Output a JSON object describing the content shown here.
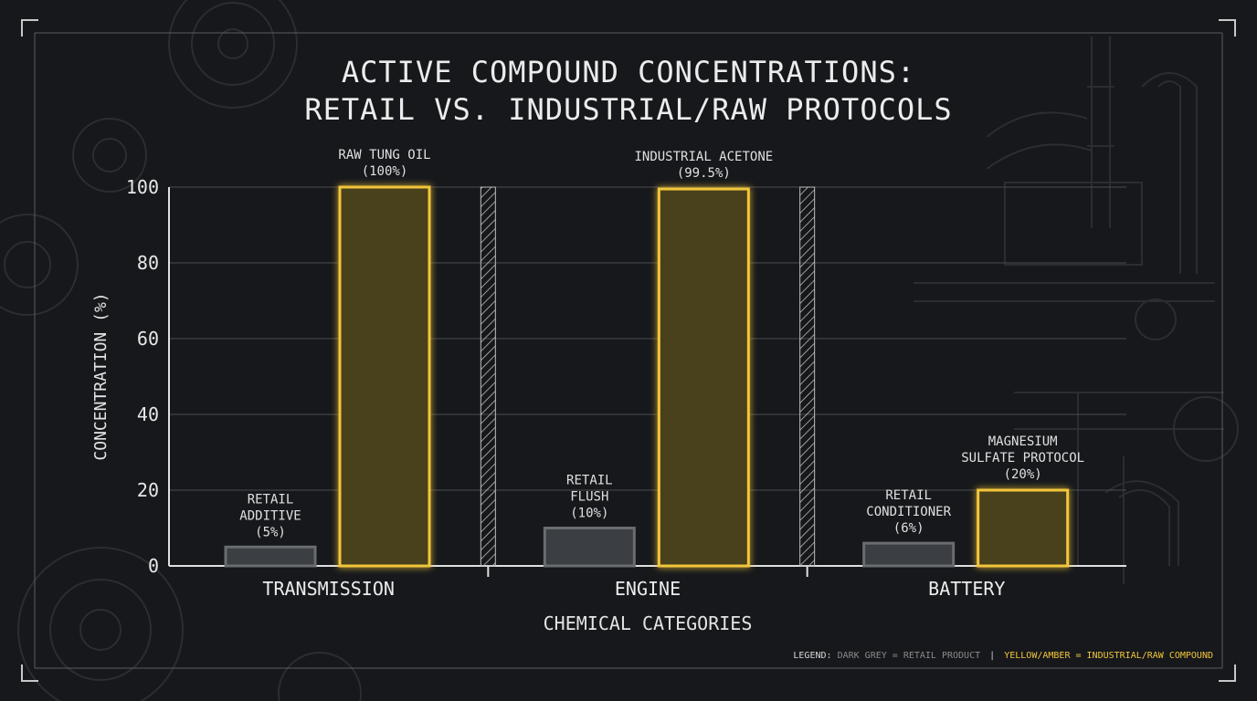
{
  "title_lines": [
    "ACTIVE COMPOUND CONCENTRATIONS:",
    "RETAIL VS. INDUSTRIAL/RAW PROTOCOLS"
  ],
  "legend": {
    "label": "LEGEND:",
    "retail": "DARK GREY = RETAIL PRODUCT",
    "separator": "|",
    "industrial": "YELLOW/AMBER = INDUSTRIAL/RAW COMPOUND"
  },
  "colors": {
    "background": "#16181b",
    "retail_fill": "#3b3e42",
    "retail_stroke": "#6a6d70",
    "industrial_fill": "#4a3f1c",
    "industrial_stroke": "#f2c63b",
    "grid": "#4a4d50",
    "axis": "#e0e0e0"
  },
  "chart_data": {
    "type": "bar",
    "xlabel": "CHEMICAL CATEGORIES",
    "ylabel": "CONCENTRATION (%)",
    "ylim": [
      0,
      100
    ],
    "yticks": [
      "0",
      "20",
      "40",
      "60",
      "80",
      "100"
    ],
    "categories": [
      "TRANSMISSION",
      "ENGINE",
      "BATTERY"
    ],
    "grid": true,
    "legend_position": "bottom-right",
    "series": [
      {
        "name": "RETAIL PRODUCT",
        "values": [
          5,
          10,
          6
        ],
        "labels": [
          [
            "RETAIL",
            "ADDITIVE",
            "(5%)"
          ],
          [
            "RETAIL",
            "FLUSH",
            "(10%)"
          ],
          [
            "RETAIL",
            "CONDITIONER",
            "(6%)"
          ]
        ]
      },
      {
        "name": "INDUSTRIAL/RAW COMPOUND",
        "values": [
          100,
          99.5,
          20
        ],
        "labels": [
          [
            "RAW TUNG OIL",
            "(100%)"
          ],
          [
            "INDUSTRIAL ACETONE",
            "(99.5%)"
          ],
          [
            "MAGNESIUM",
            "SULFATE PROTOCOL",
            "(20%)"
          ]
        ]
      }
    ]
  }
}
